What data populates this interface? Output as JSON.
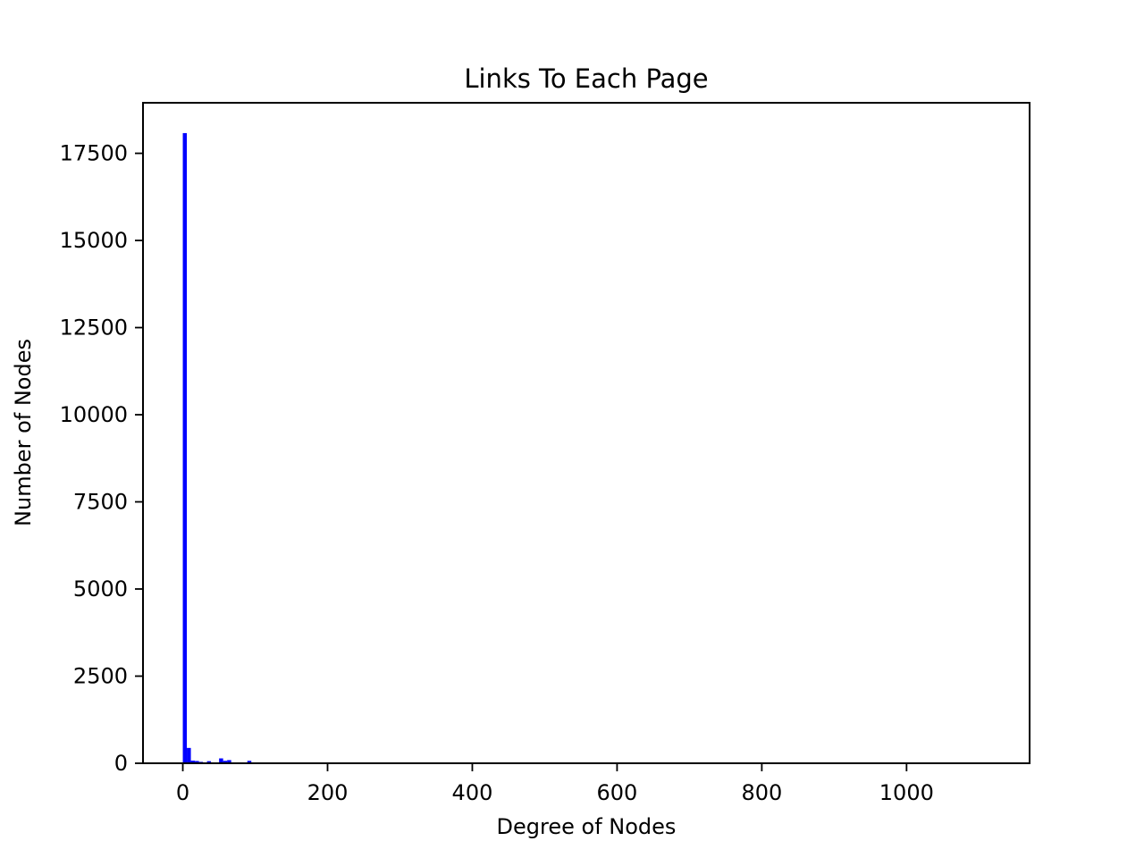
{
  "chart_data": {
    "type": "bar",
    "title": "Links To Each Page",
    "xlabel": "Degree of Nodes",
    "ylabel": "Number of Nodes",
    "xlim": [
      -55,
      1170
    ],
    "ylim": [
      0,
      18950
    ],
    "xticks": [
      0,
      200,
      400,
      600,
      800,
      1000
    ],
    "yticks": [
      0,
      2500,
      5000,
      7500,
      10000,
      12500,
      15000,
      17500
    ],
    "bar_color": "#0000ff",
    "bin_width": 5.57,
    "bins": [
      {
        "x": 0,
        "value": 18080
      },
      {
        "x": 5.57,
        "value": 440
      },
      {
        "x": 11.14,
        "value": 75
      },
      {
        "x": 16.71,
        "value": 65
      },
      {
        "x": 22.28,
        "value": 40
      },
      {
        "x": 27.85,
        "value": 20
      },
      {
        "x": 33.42,
        "value": 60
      },
      {
        "x": 39.0,
        "value": 10
      },
      {
        "x": 44.57,
        "value": 25
      },
      {
        "x": 50.14,
        "value": 140
      },
      {
        "x": 55.71,
        "value": 70
      },
      {
        "x": 61.28,
        "value": 90
      },
      {
        "x": 66.85,
        "value": 15
      },
      {
        "x": 72.42,
        "value": 10
      },
      {
        "x": 78.0,
        "value": 5
      },
      {
        "x": 83.57,
        "value": 5
      },
      {
        "x": 89.14,
        "value": 70
      },
      {
        "x": 94.71,
        "value": 5
      },
      {
        "x": 100.28,
        "value": 5
      }
    ]
  }
}
